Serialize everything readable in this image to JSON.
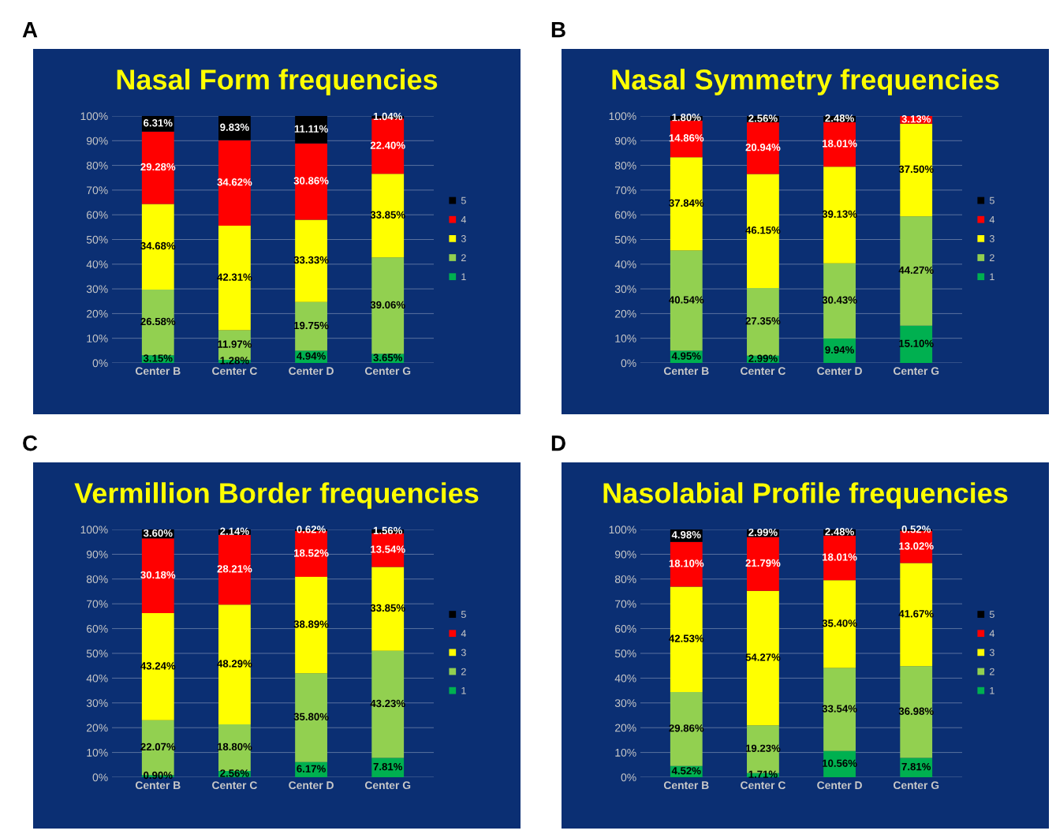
{
  "chart_data": [
    {
      "type": "bar",
      "stacked": true,
      "title": "Nasal Form frequencies",
      "annotations": [
        "A"
      ],
      "categories": [
        "Center B",
        "Center C",
        "Center D",
        "Center G"
      ],
      "ylim": [
        0,
        100
      ],
      "yticks": [
        {
          "value": 0,
          "label": "0%"
        },
        {
          "value": 10,
          "label": "10%"
        },
        {
          "value": 20,
          "label": "20%"
        },
        {
          "value": 30,
          "label": "30%"
        },
        {
          "value": 40,
          "label": "40%"
        },
        {
          "value": 50,
          "label": "50%"
        },
        {
          "value": 60,
          "label": "60%"
        },
        {
          "value": 70,
          "label": "70%"
        },
        {
          "value": 80,
          "label": "80%"
        },
        {
          "value": 90,
          "label": "90%"
        },
        {
          "value": 100,
          "label": "100%"
        }
      ],
      "grid": "y",
      "legend": "right",
      "series": [
        {
          "name": "1",
          "color": "#00b050",
          "values": [
            3.15,
            1.28,
            4.94,
            3.65
          ],
          "value_labels": [
            "3.15%",
            "1.28%",
            "4.94%",
            "3.65%"
          ]
        },
        {
          "name": "2",
          "color": "#92d050",
          "values": [
            26.58,
            11.97,
            19.75,
            39.06
          ],
          "value_labels": [
            "26.58%",
            "11.97%",
            "19.75%",
            "39.06%"
          ]
        },
        {
          "name": "3",
          "color": "#ffff00",
          "values": [
            34.68,
            42.31,
            33.33,
            33.85
          ],
          "value_labels": [
            "34.68%",
            "42.31%",
            "33.33%",
            "33.85%"
          ]
        },
        {
          "name": "4",
          "color": "#ff0000",
          "values": [
            29.28,
            34.62,
            30.86,
            22.4
          ],
          "value_labels": [
            "29.28%",
            "34.62%",
            "30.86%",
            "22.40%"
          ]
        },
        {
          "name": "5",
          "color": "#000000",
          "values": [
            6.31,
            9.83,
            11.11,
            1.04
          ],
          "value_labels": [
            "6.31%",
            "9.83%",
            "11.11%",
            "1.04%"
          ]
        }
      ]
    },
    {
      "type": "bar",
      "stacked": true,
      "title": "Nasal Symmetry frequencies",
      "annotations": [
        "B"
      ],
      "categories": [
        "Center B",
        "Center C",
        "Center D",
        "Center G"
      ],
      "ylim": [
        0,
        100
      ],
      "yticks": [
        {
          "value": 0,
          "label": "0%"
        },
        {
          "value": 10,
          "label": "10%"
        },
        {
          "value": 20,
          "label": "20%"
        },
        {
          "value": 30,
          "label": "30%"
        },
        {
          "value": 40,
          "label": "40%"
        },
        {
          "value": 50,
          "label": "50%"
        },
        {
          "value": 60,
          "label": "60%"
        },
        {
          "value": 70,
          "label": "70%"
        },
        {
          "value": 80,
          "label": "80%"
        },
        {
          "value": 90,
          "label": "90%"
        },
        {
          "value": 100,
          "label": "100%"
        }
      ],
      "grid": "y",
      "legend": "right",
      "series": [
        {
          "name": "1",
          "color": "#00b050",
          "values": [
            4.95,
            2.99,
            9.94,
            15.1
          ],
          "value_labels": [
            "4.95%",
            "2.99%",
            "9.94%",
            "15.10%"
          ]
        },
        {
          "name": "2",
          "color": "#92d050",
          "values": [
            40.54,
            27.35,
            30.43,
            44.27
          ],
          "value_labels": [
            "40.54%",
            "27.35%",
            "30.43%",
            "44.27%"
          ]
        },
        {
          "name": "3",
          "color": "#ffff00",
          "values": [
            37.84,
            46.15,
            39.13,
            37.5
          ],
          "value_labels": [
            "37.84%",
            "46.15%",
            "39.13%",
            "37.50%"
          ]
        },
        {
          "name": "4",
          "color": "#ff0000",
          "values": [
            14.86,
            20.94,
            18.01,
            3.13
          ],
          "value_labels": [
            "14.86%",
            "20.94%",
            "18.01%",
            "3.13%"
          ]
        },
        {
          "name": "5",
          "color": "#000000",
          "values": [
            1.8,
            2.56,
            2.48,
            null
          ],
          "value_labels": [
            "1.80%",
            "2.56%",
            "2.48%",
            null
          ]
        }
      ]
    },
    {
      "type": "bar",
      "stacked": true,
      "title": "Vermillion Border frequencies",
      "annotations": [
        "C"
      ],
      "categories": [
        "Center B",
        "Center C",
        "Center D",
        "Center G"
      ],
      "ylim": [
        0,
        100
      ],
      "yticks": [
        {
          "value": 0,
          "label": "0%"
        },
        {
          "value": 10,
          "label": "10%"
        },
        {
          "value": 20,
          "label": "20%"
        },
        {
          "value": 30,
          "label": "30%"
        },
        {
          "value": 40,
          "label": "40%"
        },
        {
          "value": 50,
          "label": "50%"
        },
        {
          "value": 60,
          "label": "60%"
        },
        {
          "value": 70,
          "label": "70%"
        },
        {
          "value": 80,
          "label": "80%"
        },
        {
          "value": 90,
          "label": "90%"
        },
        {
          "value": 100,
          "label": "100%"
        }
      ],
      "grid": "y",
      "legend": "right",
      "series": [
        {
          "name": "1",
          "color": "#00b050",
          "values": [
            0.9,
            2.56,
            6.17,
            7.81
          ],
          "value_labels": [
            "0.90%",
            "2.56%",
            "6.17%",
            "7.81%"
          ]
        },
        {
          "name": "2",
          "color": "#92d050",
          "values": [
            22.07,
            18.8,
            35.8,
            43.23
          ],
          "value_labels": [
            "22.07%",
            "18.80%",
            "35.80%",
            "43.23%"
          ]
        },
        {
          "name": "3",
          "color": "#ffff00",
          "values": [
            43.24,
            48.29,
            38.89,
            33.85
          ],
          "value_labels": [
            "43.24%",
            "48.29%",
            "38.89%",
            "33.85%"
          ]
        },
        {
          "name": "4",
          "color": "#ff0000",
          "values": [
            30.18,
            28.21,
            18.52,
            13.54
          ],
          "value_labels": [
            "30.18%",
            "28.21%",
            "18.52%",
            "13.54%"
          ]
        },
        {
          "name": "5",
          "color": "#000000",
          "values": [
            3.6,
            2.14,
            0.62,
            1.56
          ],
          "value_labels": [
            "3.60%",
            "2.14%",
            "0.62%",
            "1.56%"
          ]
        }
      ]
    },
    {
      "type": "bar",
      "stacked": true,
      "title": "Nasolabial Profile frequencies",
      "annotations": [
        "D"
      ],
      "categories": [
        "Center B",
        "Center C",
        "Center D",
        "Center G"
      ],
      "ylim": [
        0,
        100
      ],
      "yticks": [
        {
          "value": 0,
          "label": "0%"
        },
        {
          "value": 10,
          "label": "10%"
        },
        {
          "value": 20,
          "label": "20%"
        },
        {
          "value": 30,
          "label": "30%"
        },
        {
          "value": 40,
          "label": "40%"
        },
        {
          "value": 50,
          "label": "50%"
        },
        {
          "value": 60,
          "label": "60%"
        },
        {
          "value": 70,
          "label": "70%"
        },
        {
          "value": 80,
          "label": "80%"
        },
        {
          "value": 90,
          "label": "90%"
        },
        {
          "value": 100,
          "label": "100%"
        }
      ],
      "grid": "y",
      "legend": "right",
      "series": [
        {
          "name": "1",
          "color": "#00b050",
          "values": [
            4.52,
            1.71,
            10.56,
            7.81
          ],
          "value_labels": [
            "4.52%",
            "1.71%",
            "10.56%",
            "7.81%"
          ]
        },
        {
          "name": "2",
          "color": "#92d050",
          "values": [
            29.86,
            19.23,
            33.54,
            36.98
          ],
          "value_labels": [
            "29.86%",
            "19.23%",
            "33.54%",
            "36.98%"
          ]
        },
        {
          "name": "3",
          "color": "#ffff00",
          "values": [
            42.53,
            54.27,
            35.4,
            41.67
          ],
          "value_labels": [
            "42.53%",
            "54.27%",
            "35.40%",
            "41.67%"
          ]
        },
        {
          "name": "4",
          "color": "#ff0000",
          "values": [
            18.1,
            21.79,
            18.01,
            13.02
          ],
          "value_labels": [
            "18.10%",
            "21.79%",
            "18.01%",
            "13.02%"
          ]
        },
        {
          "name": "5",
          "color": "#000000",
          "values": [
            4.98,
            2.99,
            2.48,
            0.52
          ],
          "value_labels": [
            "4.98%",
            "2.99%",
            "2.48%",
            "0.52%"
          ]
        }
      ]
    }
  ]
}
